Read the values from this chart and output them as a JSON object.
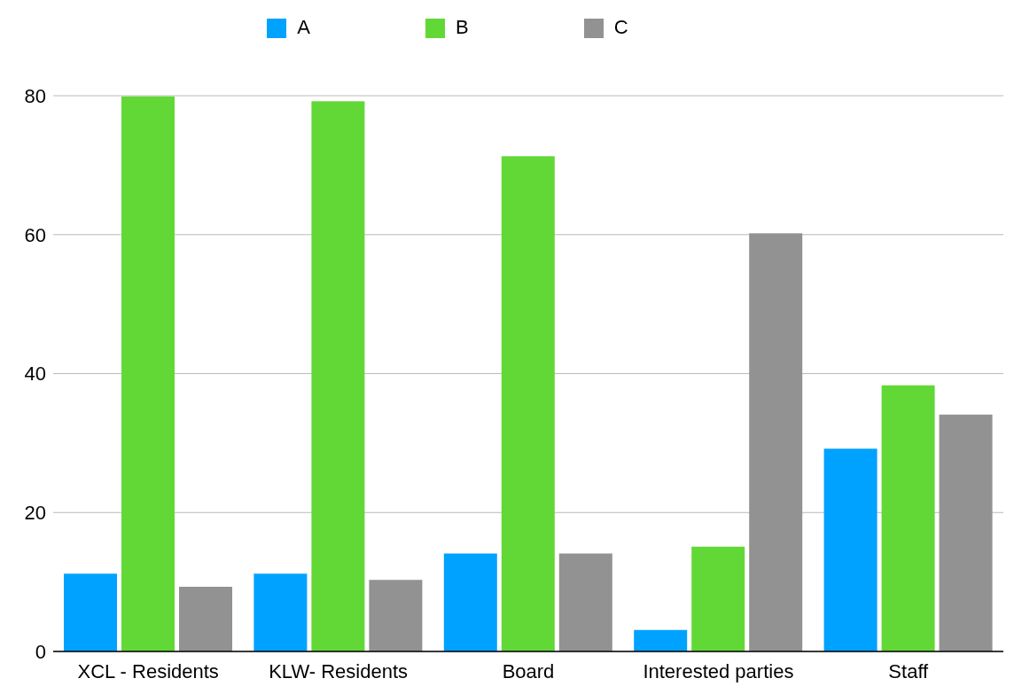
{
  "chart_data": {
    "type": "bar",
    "categories": [
      "XCL - Residents",
      "KLW- Residents",
      "Board",
      "Interested parties",
      "Staff"
    ],
    "series": [
      {
        "name": "A",
        "color": "#00a2ff",
        "values": [
          11.2,
          11.2,
          14.1,
          3.1,
          29.2
        ]
      },
      {
        "name": "B",
        "color": "#61d836",
        "values": [
          79.9,
          79.2,
          71.3,
          15.1,
          38.3
        ]
      },
      {
        "name": "C",
        "color": "#929292",
        "values": [
          9.3,
          10.3,
          14.1,
          60.2,
          34.1
        ]
      }
    ],
    "ylim": [
      0,
      80
    ],
    "yticks": [
      0,
      20,
      40,
      60,
      80
    ],
    "grid": "y",
    "legend": "top"
  }
}
